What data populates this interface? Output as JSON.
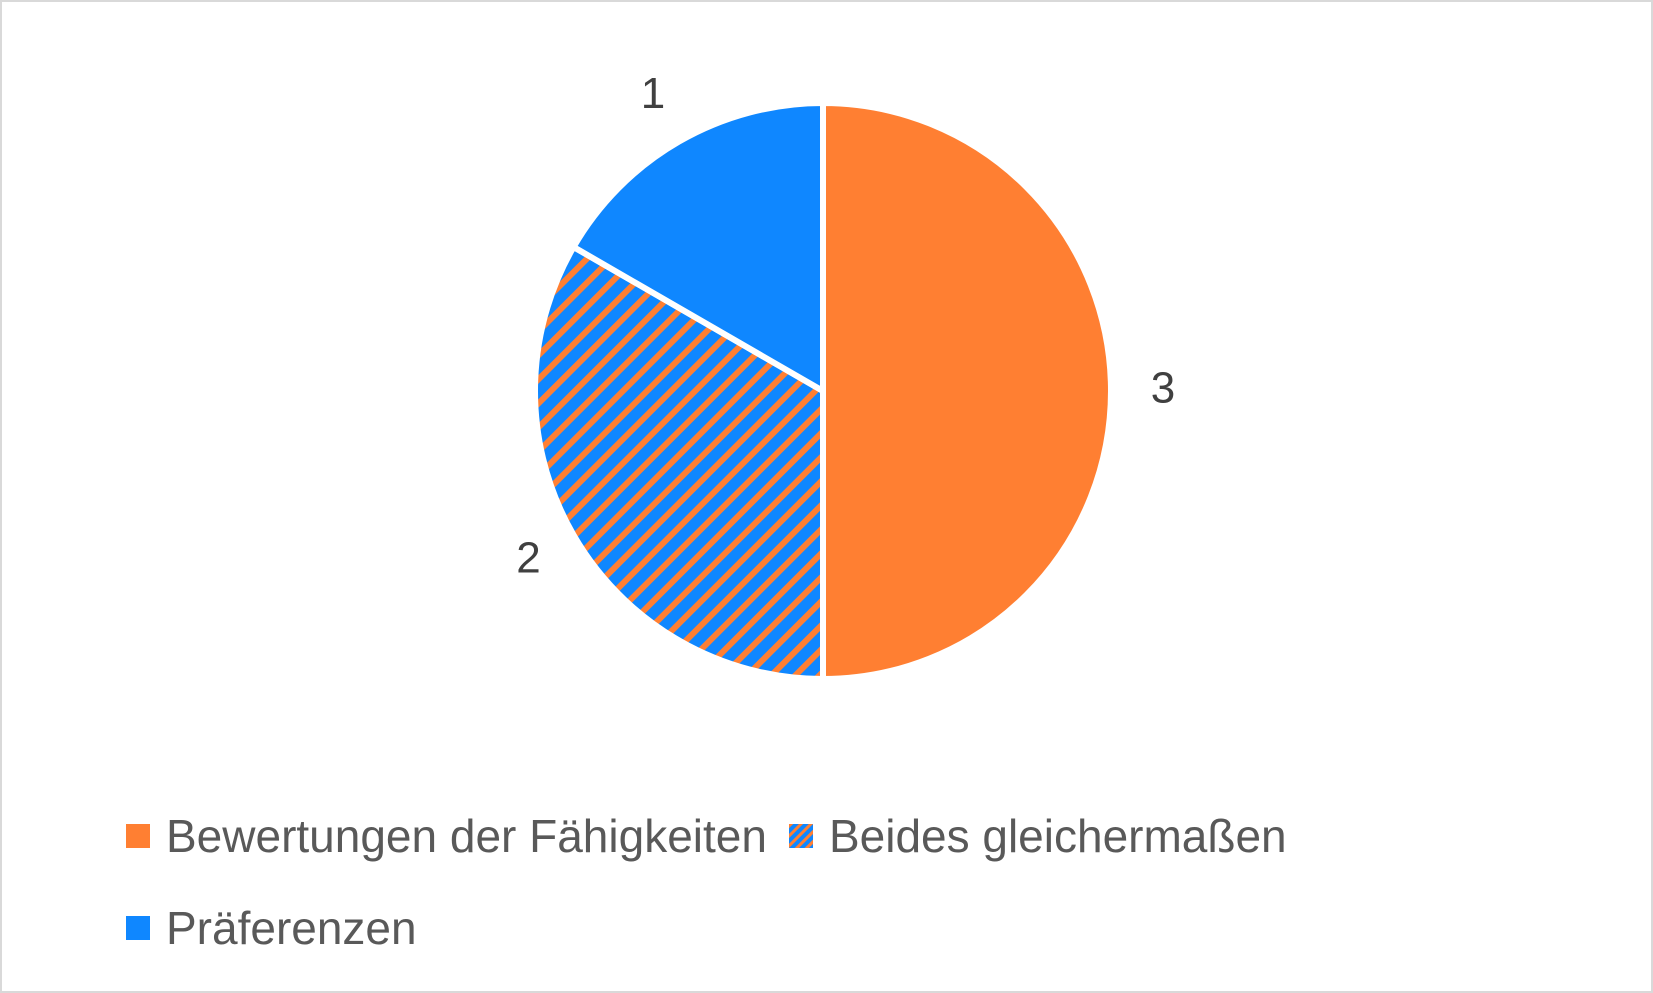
{
  "chart_data": {
    "type": "pie",
    "categories": [
      "Bewertungen der Fähigkeiten",
      "Beides gleichermaßen",
      "Präferenzen"
    ],
    "values": [
      3,
      2,
      1
    ],
    "data_labels": [
      "3",
      "2",
      "1"
    ],
    "colors": [
      "#FF7F32",
      "hatched #FF7F32 / #0F87FF",
      "#0F87FF"
    ],
    "legend_placement": "bottom",
    "start_angle": "12 o'clock, clockwise"
  },
  "legend": [
    {
      "label": "Bewertungen der Fähigkeiten",
      "color": "#FF7F32",
      "pattern": "solid"
    },
    {
      "label": "Beides gleichermaßen",
      "color": "#FF7F32",
      "color2": "#0F87FF",
      "pattern": "diagonal-stripes"
    },
    {
      "label": "Präferenzen",
      "color": "#0F87FF",
      "pattern": "solid"
    }
  ]
}
